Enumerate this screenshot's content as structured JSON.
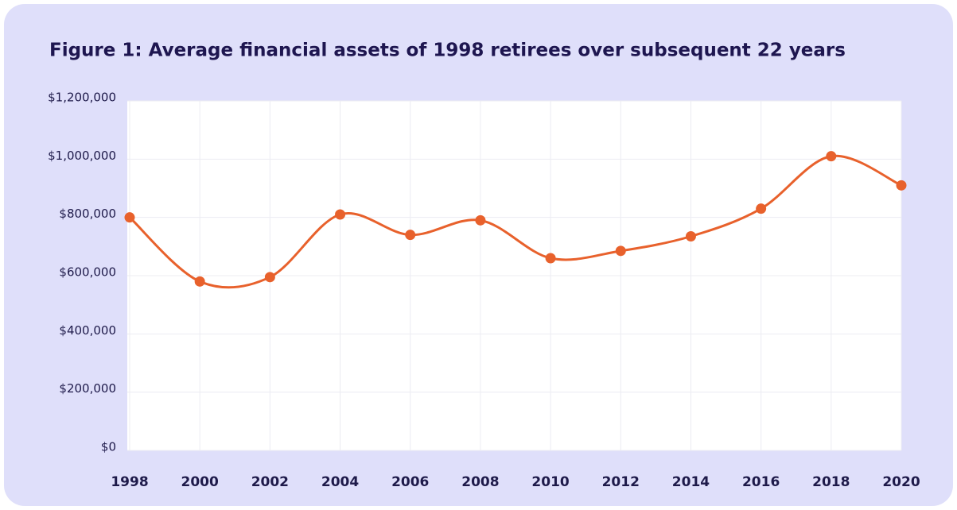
{
  "chart_data": {
    "type": "line",
    "title": "Figure 1: Average financial assets of 1998 retirees over subsequent 22 years",
    "x": [
      1998,
      2000,
      2002,
      2004,
      2006,
      2008,
      2010,
      2012,
      2014,
      2016,
      2018,
      2020
    ],
    "series": [
      {
        "name": "Average financial assets",
        "color": "#e8612c",
        "values": [
          800000,
          580000,
          595000,
          810000,
          740000,
          790000,
          660000,
          685000,
          735000,
          830000,
          1010000,
          910000
        ]
      }
    ],
    "xlim": [
      1998,
      2020
    ],
    "xticks": [
      1998,
      2000,
      2002,
      2004,
      2006,
      2008,
      2010,
      2012,
      2014,
      2016,
      2018,
      2020
    ],
    "ylim": [
      0,
      1200000
    ],
    "yticks": [
      {
        "value": 0,
        "label": "$0"
      },
      {
        "value": 200000,
        "label": "$200,000"
      },
      {
        "value": 400000,
        "label": "$400,000"
      },
      {
        "value": 600000,
        "label": "$600,000"
      },
      {
        "value": 800000,
        "label": "$800,000"
      },
      {
        "value": 1000000,
        "label": "$1,000,000"
      },
      {
        "value": 1200000,
        "label": "$1,200,000"
      }
    ],
    "grid": true
  }
}
